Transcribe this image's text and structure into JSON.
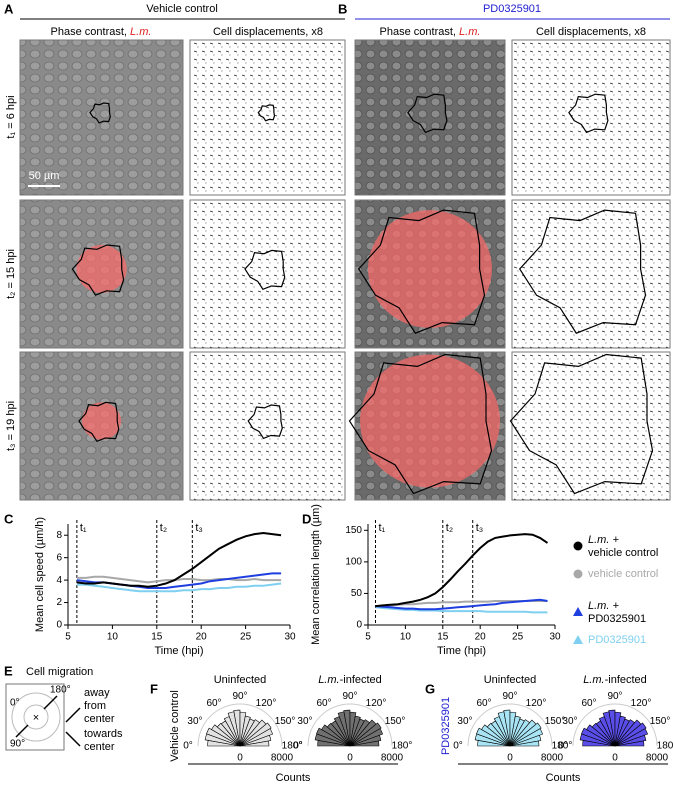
{
  "panel_a": {
    "letter": "A",
    "title": "Vehicle control"
  },
  "panel_b": {
    "letter": "B",
    "title": "PD0325901"
  },
  "image_headers": {
    "phase": "Phase contrast,",
    "species": "L.m.",
    "displacement": "Cell displacements, x8"
  },
  "rows": [
    "t₁ = 6 hpi",
    "t₂ = 15 hpi",
    "t₃ = 19 hpi"
  ],
  "scale_bar": "50 µm",
  "legend": [
    {
      "prefix": "L.m. +",
      "name": "vehicle control",
      "color": "#000000",
      "marker": "circle"
    },
    {
      "name": "vehicle control",
      "color": "#a8a8a8",
      "marker": "circle"
    },
    {
      "prefix": "L.m. +",
      "name": "PD0325901",
      "color": "#1f3fe0",
      "marker": "triangle"
    },
    {
      "name": "PD0325901",
      "color": "#7fd0f0",
      "marker": "triangle"
    }
  ],
  "chart_data": [
    {
      "type": "line",
      "letter": "C",
      "y_label": "Mean cell speed (µm/h)",
      "x_label": "Time (hpi)",
      "xlim": [
        5,
        30
      ],
      "xticks": [
        5,
        10,
        15,
        20,
        25,
        30
      ],
      "ylim": [
        0,
        9
      ],
      "yticks": [
        0,
        2,
        4,
        6,
        8
      ],
      "annotations": [
        {
          "x": 6,
          "label": "t₁"
        },
        {
          "x": 15,
          "label": "t₂"
        },
        {
          "x": 19,
          "label": "t₃"
        }
      ],
      "x": [
        6,
        7,
        8,
        9,
        10,
        11,
        12,
        13,
        14,
        15,
        16,
        17,
        18,
        19,
        20,
        21,
        22,
        23,
        24,
        25,
        26,
        27,
        28,
        29
      ],
      "series": [
        {
          "color": "#a8a8a8",
          "values": [
            4.2,
            4.2,
            4.3,
            4.3,
            4.2,
            4.1,
            4.0,
            3.9,
            3.8,
            3.9,
            4.0,
            4.0,
            4.1,
            4.1,
            4.0,
            4.0,
            4.1,
            4.1,
            4.0,
            4.0,
            4.1,
            4.0,
            4.0,
            4.0
          ]
        },
        {
          "color": "#7fd0f0",
          "values": [
            3.6,
            3.6,
            3.5,
            3.4,
            3.3,
            3.2,
            3.1,
            3.0,
            3.0,
            3.0,
            3.0,
            3.0,
            3.1,
            3.1,
            3.2,
            3.2,
            3.3,
            3.3,
            3.4,
            3.4,
            3.5,
            3.5,
            3.6,
            3.7
          ]
        },
        {
          "color": "#1f3fe0",
          "values": [
            4.0,
            3.9,
            3.8,
            3.8,
            3.7,
            3.6,
            3.5,
            3.4,
            3.3,
            3.3,
            3.3,
            3.4,
            3.5,
            3.6,
            3.7,
            3.9,
            4.0,
            4.1,
            4.2,
            4.3,
            4.4,
            4.5,
            4.6,
            4.6
          ]
        },
        {
          "color": "#000000",
          "values": [
            3.8,
            3.7,
            3.7,
            3.8,
            3.7,
            3.6,
            3.5,
            3.5,
            3.4,
            3.5,
            3.7,
            4.0,
            4.5,
            5.0,
            5.6,
            6.2,
            6.8,
            7.2,
            7.6,
            7.9,
            8.1,
            8.2,
            8.1,
            8.0
          ]
        }
      ]
    },
    {
      "type": "line",
      "letter": "D",
      "y_label": "Mean correlation length (µm)",
      "x_label": "Time (hpi)",
      "xlim": [
        5,
        30
      ],
      "xticks": [
        5,
        10,
        15,
        20,
        25,
        30
      ],
      "ylim": [
        0,
        160
      ],
      "yticks": [
        0,
        50,
        100,
        150
      ],
      "annotations": [
        {
          "x": 6,
          "label": "t₁"
        },
        {
          "x": 15,
          "label": "t₂"
        },
        {
          "x": 19,
          "label": "t₃"
        }
      ],
      "x": [
        6,
        7,
        8,
        9,
        10,
        11,
        12,
        13,
        14,
        15,
        16,
        17,
        18,
        19,
        20,
        21,
        22,
        23,
        24,
        25,
        26,
        27,
        28,
        29
      ],
      "series": [
        {
          "color": "#a8a8a8",
          "values": [
            30,
            30,
            31,
            32,
            33,
            33,
            34,
            35,
            35,
            36,
            36,
            36,
            37,
            37,
            37,
            37,
            38,
            38,
            38,
            38,
            38,
            38,
            38,
            38
          ]
        },
        {
          "color": "#7fd0f0",
          "values": [
            28,
            27,
            26,
            25,
            24,
            24,
            23,
            23,
            23,
            22,
            22,
            22,
            22,
            22,
            22,
            21,
            21,
            21,
            21,
            21,
            21,
            20,
            20,
            20
          ]
        },
        {
          "color": "#1f3fe0",
          "values": [
            30,
            29,
            28,
            27,
            26,
            26,
            25,
            25,
            25,
            26,
            27,
            28,
            29,
            30,
            31,
            32,
            33,
            35,
            36,
            37,
            38,
            39,
            40,
            38
          ]
        },
        {
          "color": "#000000",
          "values": [
            30,
            31,
            32,
            33,
            35,
            37,
            40,
            44,
            50,
            60,
            72,
            85,
            97,
            110,
            122,
            132,
            138,
            140,
            142,
            143,
            144,
            143,
            138,
            130
          ]
        }
      ]
    }
  ],
  "panel_e": {
    "letter": "E",
    "title": "Cell migration",
    "angles": [
      "180°",
      "0°",
      "90°"
    ],
    "away": [
      "away",
      "from",
      "center"
    ],
    "towards": [
      "towards",
      "center"
    ]
  },
  "panel_f": {
    "letter": "F",
    "row_label": "Vehicle control"
  },
  "panel_g": {
    "letter": "G",
    "row_label": "PD0325901"
  },
  "polar": {
    "uninfected": "Uninfected",
    "infected_species": "L.m.",
    "infected": "-infected",
    "angles": [
      "0°",
      "30°",
      "60°",
      "90°",
      "120°",
      "150°",
      "180°"
    ],
    "counts_ticks": [
      "0",
      "8000"
    ],
    "counts_label": "Counts"
  }
}
